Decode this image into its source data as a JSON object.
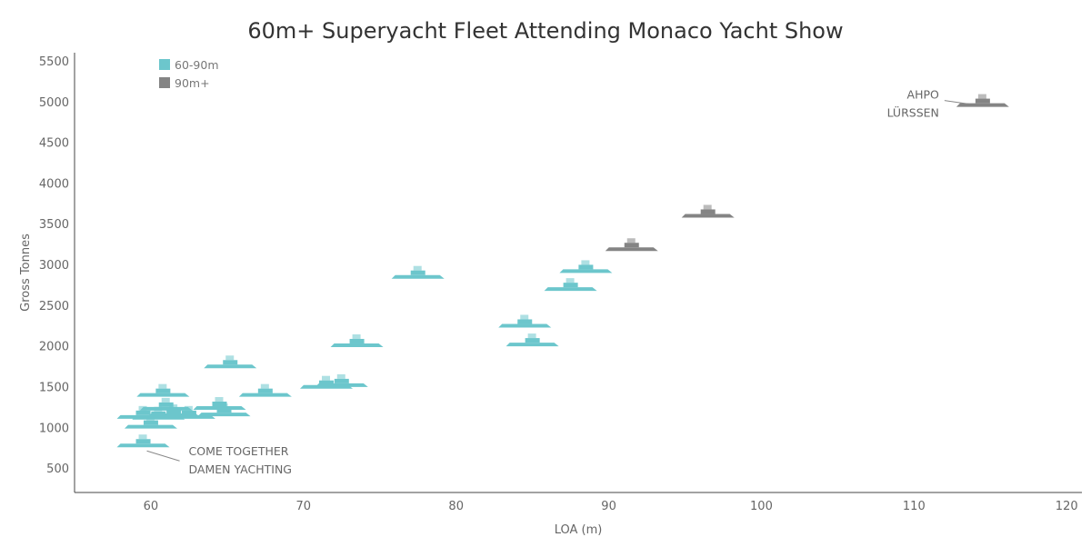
{
  "chart_data": {
    "type": "scatter",
    "title": "60m+ Superyacht Fleet Attending Monaco Yacht Show",
    "xlabel": "LOA (m)",
    "ylabel": "Gross Tonnes",
    "xlim": [
      55,
      121
    ],
    "ylim": [
      200,
      5600
    ],
    "xticks": [
      60,
      70,
      80,
      90,
      100,
      110,
      120
    ],
    "yticks": [
      500,
      1000,
      1500,
      2000,
      2500,
      3000,
      3500,
      4000,
      4500,
      5000,
      5500
    ],
    "grid": false,
    "legend_position": "top-left",
    "colors": {
      "60-90m": "#6cc6cc",
      "90m+": "#848484"
    },
    "series": [
      {
        "name": "60-90m",
        "points": [
          {
            "x": 59.5,
            "y": 800
          },
          {
            "x": 60.0,
            "y": 1030
          },
          {
            "x": 59.5,
            "y": 1150
          },
          {
            "x": 60.5,
            "y": 1140
          },
          {
            "x": 61.0,
            "y": 1250
          },
          {
            "x": 61.5,
            "y": 1170
          },
          {
            "x": 62.5,
            "y": 1150
          },
          {
            "x": 60.8,
            "y": 1420
          },
          {
            "x": 64.5,
            "y": 1260
          },
          {
            "x": 64.8,
            "y": 1180
          },
          {
            "x": 65.2,
            "y": 1770
          },
          {
            "x": 67.5,
            "y": 1420
          },
          {
            "x": 71.5,
            "y": 1520
          },
          {
            "x": 72.5,
            "y": 1540
          },
          {
            "x": 73.5,
            "y": 2030
          },
          {
            "x": 77.5,
            "y": 2870
          },
          {
            "x": 84.5,
            "y": 2270
          },
          {
            "x": 85.0,
            "y": 2040
          },
          {
            "x": 87.5,
            "y": 2720
          },
          {
            "x": 88.5,
            "y": 2940
          }
        ]
      },
      {
        "name": "90m+",
        "points": [
          {
            "x": 91.5,
            "y": 3210
          },
          {
            "x": 96.5,
            "y": 3620
          },
          {
            "x": 114.5,
            "y": 4980
          }
        ]
      }
    ],
    "annotations": [
      {
        "lines": [
          "COME TOGETHER",
          "DAMEN YACHTING"
        ],
        "x": 59.5,
        "y": 800
      },
      {
        "lines": [
          "AHPO",
          "LÜRSSEN"
        ],
        "x": 114.5,
        "y": 4980
      }
    ]
  }
}
